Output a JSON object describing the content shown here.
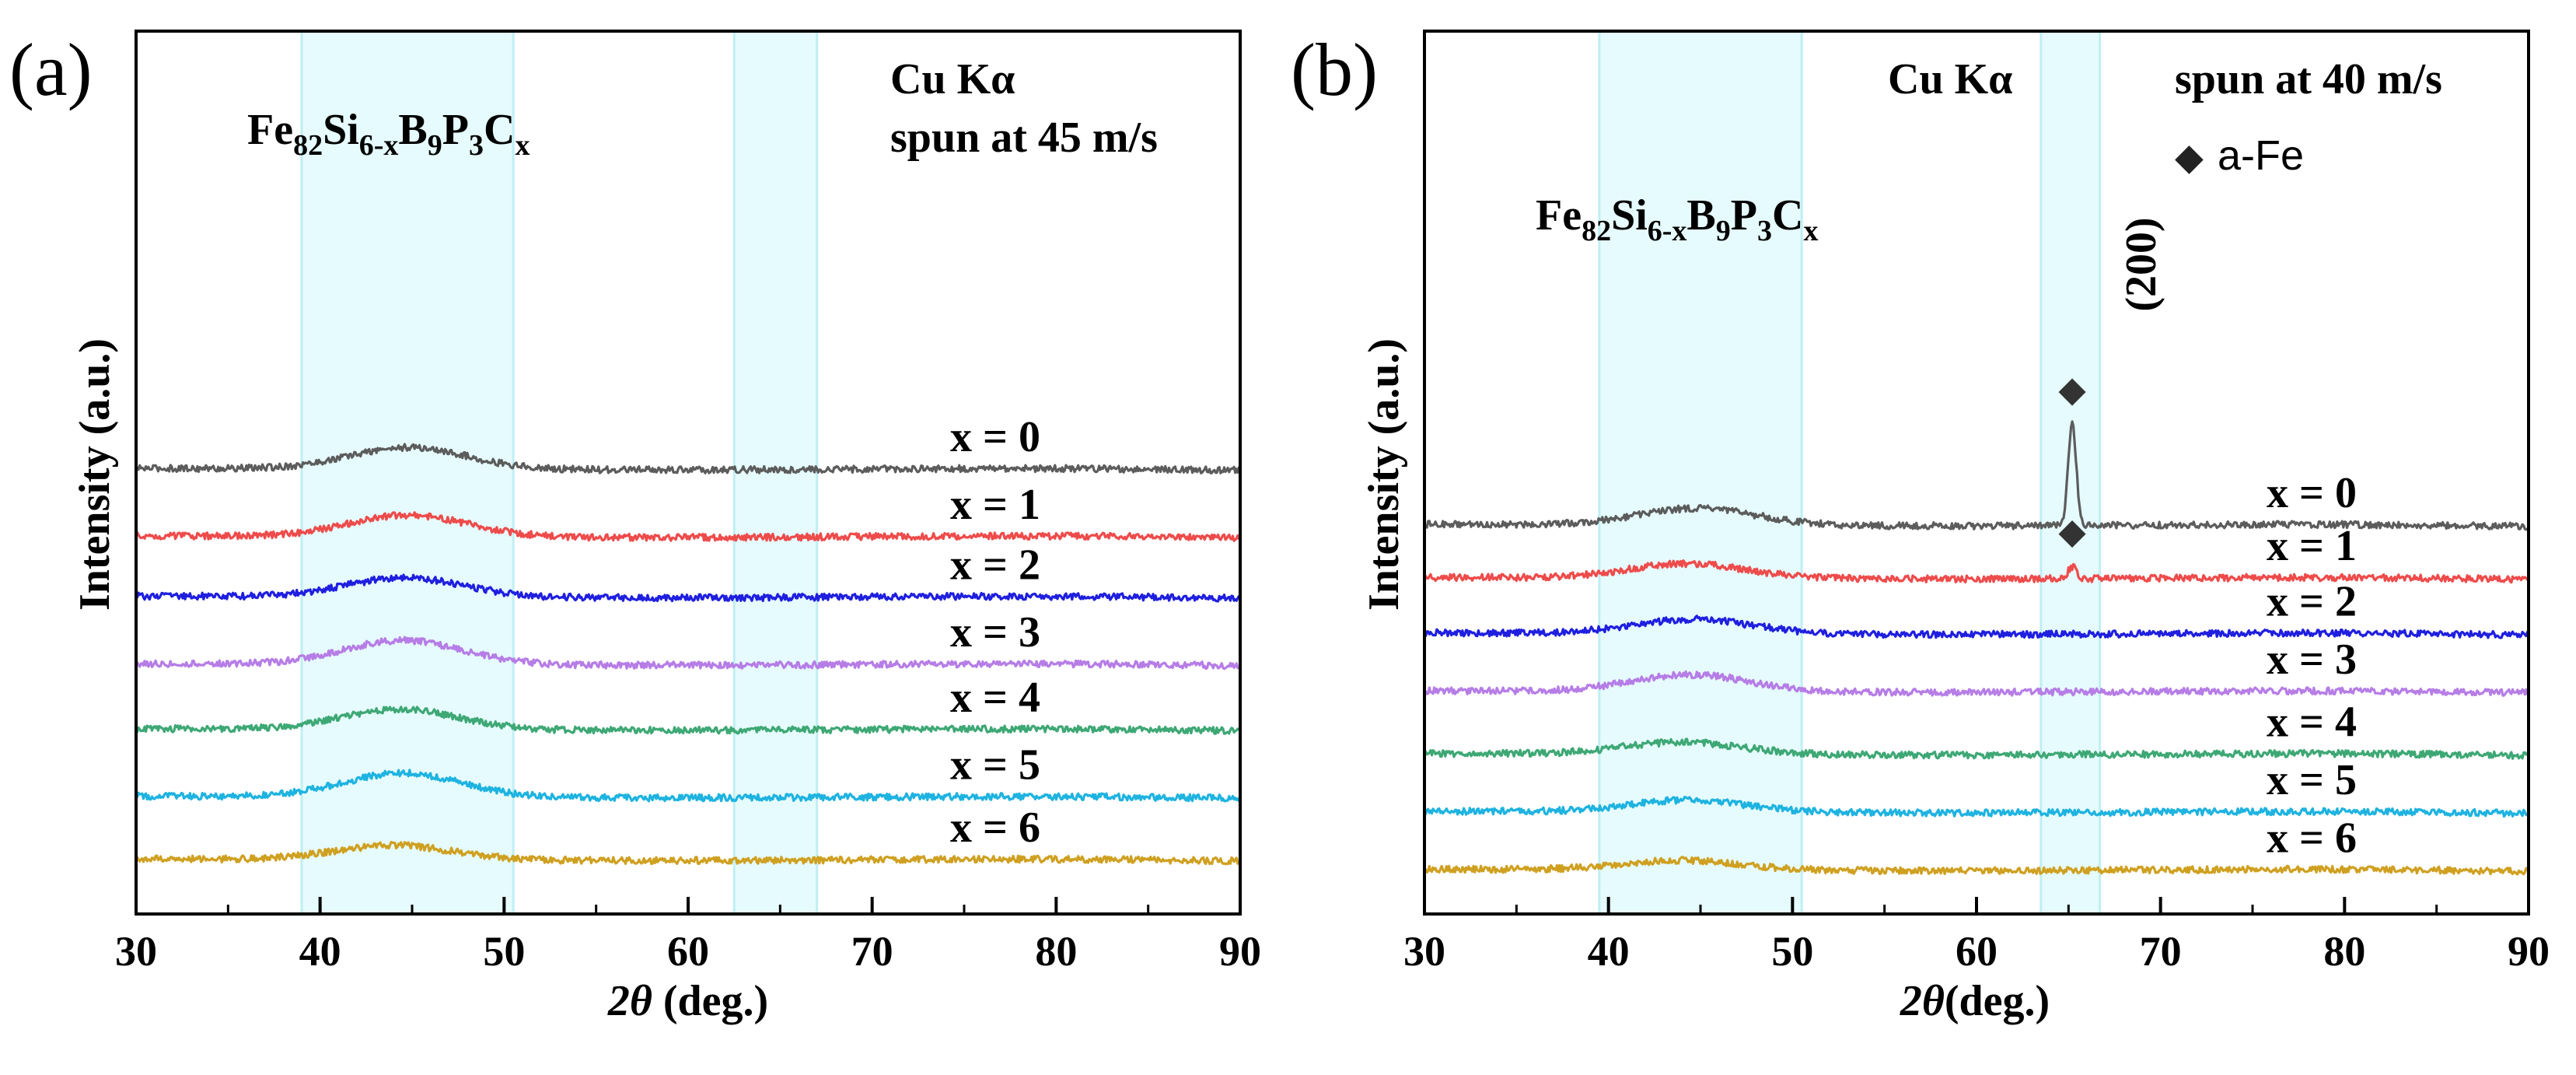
{
  "chart_data": [
    {
      "type": "line",
      "panel_label": "(a)",
      "xlabel_theta": "2θ",
      "xlabel_units": " (deg.)",
      "ylabel": "Intensity (a.u.)",
      "xlim": [
        30,
        90
      ],
      "x_ticks": [
        30,
        40,
        50,
        60,
        70,
        80,
        90
      ],
      "y_ticks_shown": false,
      "composition": {
        "base": "Fe",
        "s1": "82",
        "e2": "Si",
        "s2": "6-x",
        "e3": "B",
        "s3": "9",
        "e4": "P",
        "s4": "3",
        "e5": "C",
        "s5": "x"
      },
      "radiation": "Cu Kα",
      "process": "spun at 45 m/s",
      "highlight_bands": [
        [
          39,
          50.5
        ],
        [
          62.5,
          67
        ]
      ],
      "series": [
        {
          "name": "x = 0",
          "color": "#5c5c5c",
          "offset": 9.0,
          "halo_center": 44.8,
          "halo_height": 0.45,
          "sharp_peaks": []
        },
        {
          "name": "x = 1",
          "color": "#ee4b4b",
          "offset": 7.6,
          "halo_center": 44.8,
          "halo_height": 0.45,
          "sharp_peaks": []
        },
        {
          "name": "x = 2",
          "color": "#1f1fe0",
          "offset": 6.35,
          "halo_center": 44.6,
          "halo_height": 0.4,
          "sharp_peaks": []
        },
        {
          "name": "x = 3",
          "color": "#b67de6",
          "offset": 4.95,
          "halo_center": 44.5,
          "halo_height": 0.5,
          "sharp_peaks": []
        },
        {
          "name": "x = 4",
          "color": "#3ea875",
          "offset": 3.6,
          "halo_center": 44.3,
          "halo_height": 0.42,
          "sharp_peaks": []
        },
        {
          "name": "x = 5",
          "color": "#1eb3e0",
          "offset": 2.2,
          "halo_center": 44.5,
          "halo_height": 0.5,
          "sharp_peaks": []
        },
        {
          "name": "x = 6",
          "color": "#cfa020",
          "offset": 0.9,
          "halo_center": 44.0,
          "halo_height": 0.3,
          "sharp_peaks": []
        }
      ]
    },
    {
      "type": "line",
      "panel_label": "(b)",
      "xlabel_theta": "2θ",
      "xlabel_units": "(deg.)",
      "ylabel": "Intensity (a.u.)",
      "xlim": [
        30,
        90
      ],
      "x_ticks": [
        30,
        40,
        50,
        60,
        70,
        80,
        90
      ],
      "y_ticks_shown": false,
      "composition": {
        "base": "Fe",
        "s1": "82",
        "e2": "Si",
        "s2": "6-x",
        "e3": "B",
        "s3": "9",
        "e4": "P",
        "s4": "3",
        "e5": "C",
        "s5": "x"
      },
      "radiation": "Cu Kα",
      "process": "spun at 40 m/s",
      "legend_marker": "◆",
      "legend_text": "a-Fe",
      "peak_label": "(200)",
      "highlight_bands": [
        [
          39.5,
          50.5
        ],
        [
          63.5,
          66.7
        ]
      ],
      "series": [
        {
          "name": "x = 0",
          "color": "#5c5c5c",
          "offset": 8.0,
          "halo_center": 44.8,
          "halo_height": 0.35,
          "sharp_peaks": [
            {
              "x": 65.2,
              "height": 2.1,
              "marker": "◆"
            }
          ]
        },
        {
          "name": "x = 1",
          "color": "#ee4b4b",
          "offset": 6.9,
          "halo_center": 44.3,
          "halo_height": 0.3,
          "sharp_peaks": [
            {
              "x": 65.2,
              "height": 0.25,
              "marker": "◆"
            }
          ]
        },
        {
          "name": "x = 2",
          "color": "#1f1fe0",
          "offset": 5.75,
          "halo_center": 44.6,
          "halo_height": 0.3,
          "sharp_peaks": []
        },
        {
          "name": "x = 3",
          "color": "#b67de6",
          "offset": 4.55,
          "halo_center": 44.5,
          "halo_height": 0.35,
          "sharp_peaks": []
        },
        {
          "name": "x = 4",
          "color": "#3ea875",
          "offset": 3.25,
          "halo_center": 44.0,
          "halo_height": 0.25,
          "sharp_peaks": []
        },
        {
          "name": "x = 5",
          "color": "#1eb3e0",
          "offset": 2.05,
          "halo_center": 44.3,
          "halo_height": 0.25,
          "sharp_peaks": []
        },
        {
          "name": "x = 6",
          "color": "#cfa020",
          "offset": 0.85,
          "halo_center": 44.0,
          "halo_height": 0.2,
          "sharp_peaks": []
        }
      ]
    }
  ]
}
